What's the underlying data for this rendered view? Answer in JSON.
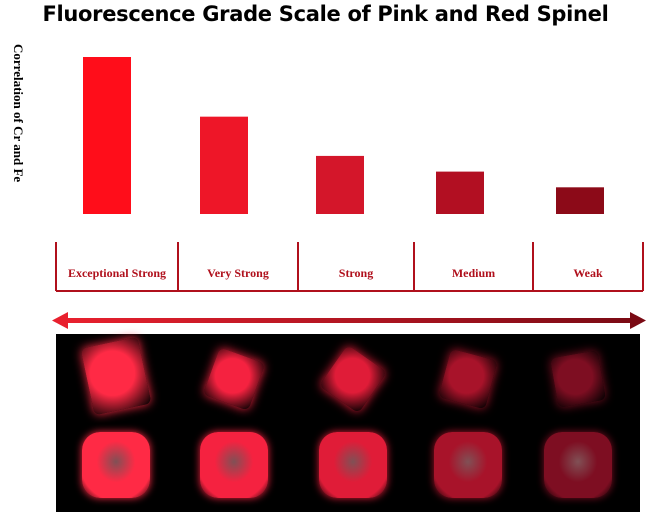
{
  "chart_data": {
    "type": "bar",
    "title": "Fluorescence Grade Scale of Pink and Red Spinel",
    "ylabel": "Correlation of Cr and Fe",
    "xlabel": "",
    "categories": [
      "Exceptional Strong",
      "Very Strong",
      "Strong",
      "Medium",
      "Weak"
    ],
    "values": [
      100,
      62,
      37,
      27,
      17
    ],
    "ylim": [
      0,
      100
    ],
    "grid": false,
    "bar_colors": [
      "#ff0d1a",
      "#ee1628",
      "#d4162a",
      "#b20f22",
      "#8c0a18"
    ],
    "label_color": "#b0101c",
    "arrow_color_left": "#e8202e",
    "arrow_color_right": "#7a0a14"
  },
  "photo": {
    "background": "#000000",
    "gem_colors": [
      "#ff2a45",
      "#f52240",
      "#e01c38",
      "#a8132a",
      "#7e0e22"
    ]
  }
}
